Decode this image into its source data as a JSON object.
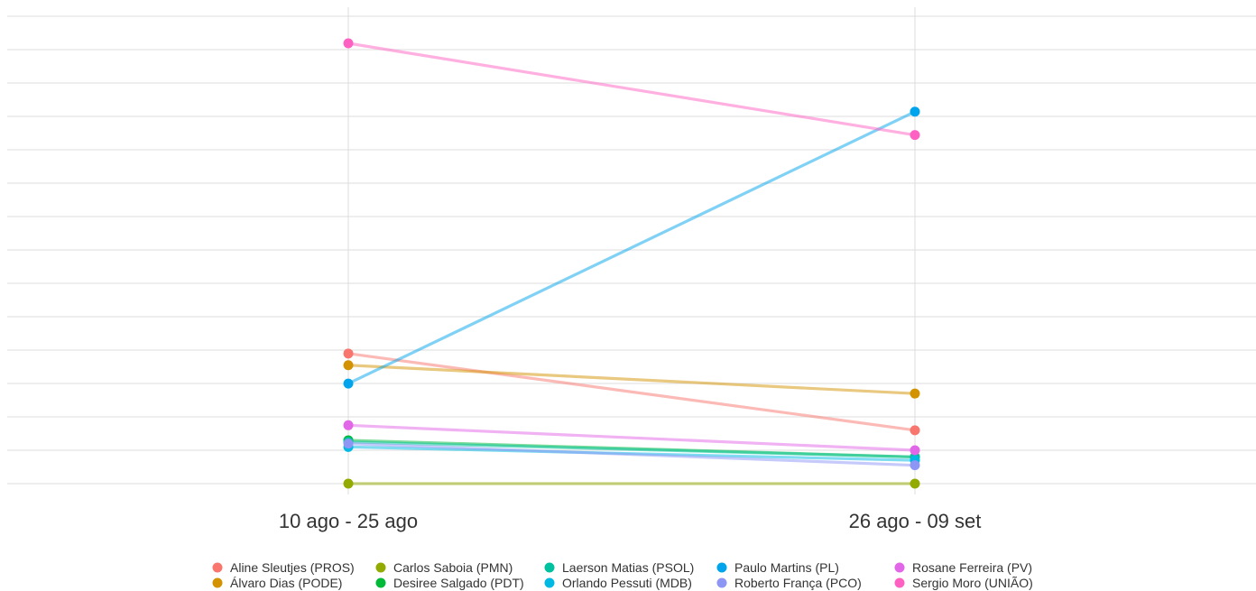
{
  "chart_data": {
    "type": "line",
    "categories": [
      "10 ago - 25 ago",
      "26 ago - 09 set"
    ],
    "ylim": [
      0,
      13.2
    ],
    "grid": true,
    "legend_position": "bottom",
    "series": [
      {
        "name": "Aline Sleutjes (PROS)",
        "color": "#F8766D",
        "values": [
          3.9,
          1.6
        ]
      },
      {
        "name": "Álvaro Dias (PODE)",
        "color": "#D39200",
        "values": [
          3.55,
          2.7
        ]
      },
      {
        "name": "Carlos  Saboia  (PMN)",
        "color": "#93AA00",
        "values": [
          0.0,
          0.0
        ]
      },
      {
        "name": "Desiree Salgado (PDT)",
        "color": "#00BA38",
        "values": [
          1.3,
          0.8
        ]
      },
      {
        "name": "Laerson Matias (PSOL)",
        "color": "#00C19F",
        "values": [
          1.25,
          0.8
        ]
      },
      {
        "name": "Orlando Pessuti (MDB)",
        "color": "#00B9E3",
        "values": [
          1.1,
          0.7
        ]
      },
      {
        "name": "Paulo Martins (PL)",
        "color": "#00A4EC",
        "values": [
          3.0,
          11.15
        ]
      },
      {
        "name": "Roberto França (PCO)",
        "color": "#8E96F5",
        "values": [
          1.2,
          0.55
        ]
      },
      {
        "name": "Rosane Ferreira (PV)",
        "color": "#E266E8",
        "values": [
          1.75,
          1.0
        ]
      },
      {
        "name": "Sergio Moro (UNIÃO)",
        "color": "#FF61C3",
        "values": [
          13.2,
          10.45
        ]
      }
    ]
  }
}
